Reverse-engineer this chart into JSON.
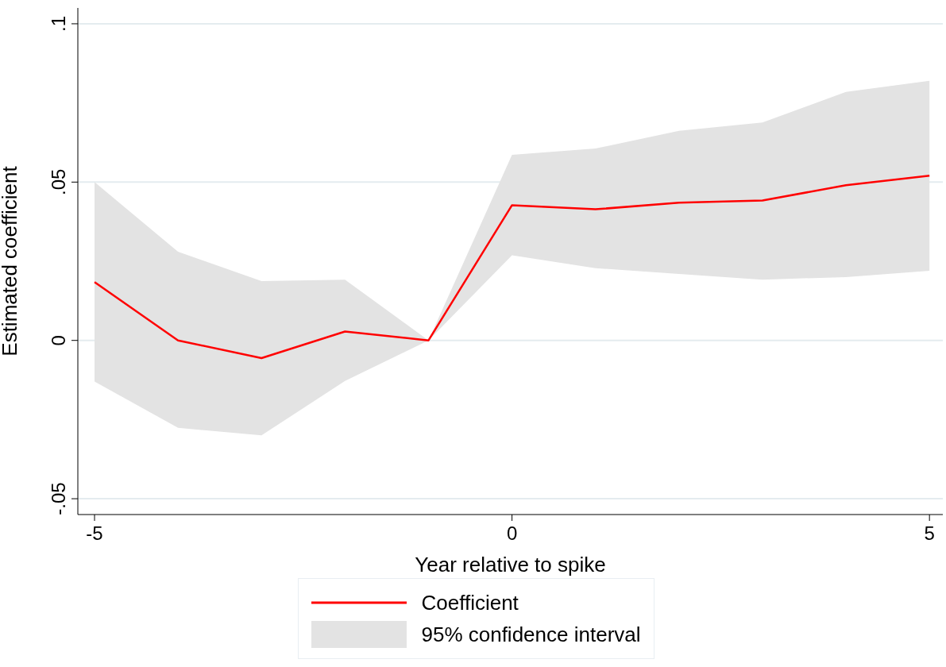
{
  "chart_data": {
    "type": "line",
    "xlabel": "Year relative to spike",
    "ylabel": "Estimated coefficient",
    "x": [
      -5,
      -4,
      -3,
      -2,
      -1,
      0,
      1,
      2,
      3,
      4,
      5
    ],
    "series": [
      {
        "name": "Coefficient",
        "color": "#ff0000",
        "values": [
          0.0184,
          0,
          -0.0056,
          0.0028,
          0,
          0.0427,
          0.0414,
          0.0435,
          0.0442,
          0.049,
          0.052
        ],
        "lower": [
          -0.013,
          -0.0276,
          -0.03,
          -0.0128,
          0,
          0.0269,
          0.0228,
          0.021,
          0.0192,
          0.02,
          0.022
        ],
        "upper": [
          0.05,
          0.028,
          0.0187,
          0.0192,
          0,
          0.0586,
          0.0606,
          0.0662,
          0.0688,
          0.0785,
          0.082
        ]
      }
    ],
    "annotations": [
      "95% confidence interval"
    ],
    "xlim": [
      -5.2,
      5.16
    ],
    "xticks": [
      -5,
      0,
      5
    ],
    "ylim": [
      -0.055,
      0.105
    ],
    "yticks": [
      {
        "value": -0.05,
        "label": "-.05"
      },
      {
        "value": 0,
        "label": "0"
      },
      {
        "value": 0.05,
        "label": ".05"
      },
      {
        "value": 0.1,
        "label": ".1"
      }
    ],
    "grid": "y",
    "legend": "bottom",
    "marker": "none",
    "line_style": "solid"
  }
}
